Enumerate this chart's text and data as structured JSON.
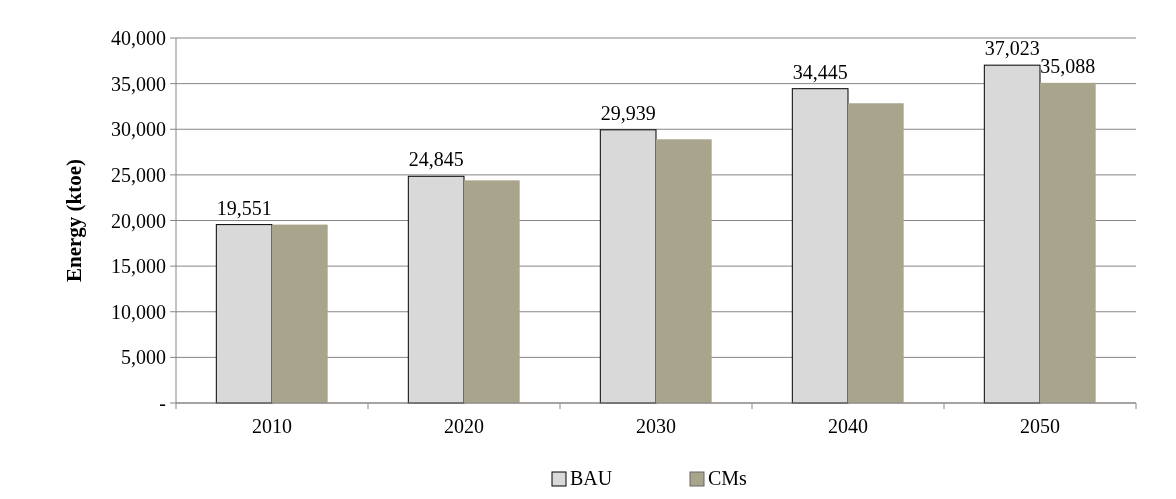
{
  "chart_data": {
    "type": "bar",
    "ylabel": "Energy (ktoe)",
    "categories": [
      "2010",
      "2020",
      "2030",
      "2040",
      "2050"
    ],
    "series": [
      {
        "name": "BAU",
        "color": "#d9d9d9",
        "values": [
          19551,
          24845,
          29939,
          34445,
          37023
        ],
        "value_labels": [
          "19,551",
          "24,845",
          "29,939",
          "34,445",
          "37,023"
        ]
      },
      {
        "name": "CMs",
        "color": "#a9a58c",
        "values": [
          19551,
          24400,
          28900,
          32850,
          35088
        ],
        "value_labels": [
          null,
          null,
          null,
          null,
          "35,088"
        ]
      }
    ],
    "ylim": [
      0,
      40000
    ],
    "yticks": [
      {
        "value": 0,
        "label": "-"
      },
      {
        "value": 5000,
        "label": "5,000"
      },
      {
        "value": 10000,
        "label": "10,000"
      },
      {
        "value": 15000,
        "label": "15,000"
      },
      {
        "value": 20000,
        "label": "20,000"
      },
      {
        "value": 25000,
        "label": "25,000"
      },
      {
        "value": 30000,
        "label": "30,000"
      },
      {
        "value": 35000,
        "label": "35,000"
      },
      {
        "value": 40000,
        "label": "40,000"
      }
    ],
    "grid": "y",
    "legend": "bottom"
  }
}
